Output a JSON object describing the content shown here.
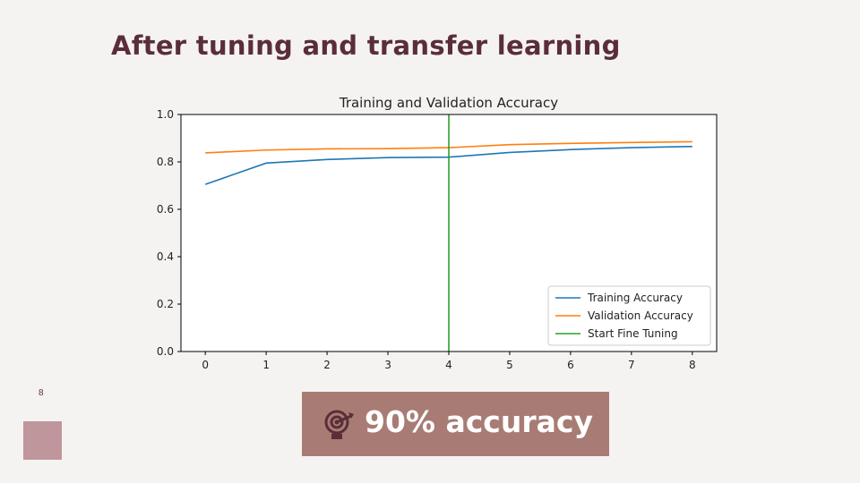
{
  "slide": {
    "title": "After tuning and transfer learning",
    "page_number": "8",
    "callout_text": "90% accuracy",
    "callout_icon": "target-icon",
    "colors": {
      "title": "#5a2e38",
      "callout_bg": "#a87c74",
      "deco_square": "#bf969c",
      "training": "#1f77b4",
      "validation": "#ff7f0e",
      "fine_tune": "#2ca02c"
    }
  },
  "chart_data": {
    "type": "line",
    "title": "Training and Validation Accuracy",
    "xlabel": "",
    "ylabel": "",
    "xlim": [
      -0.4,
      8.4
    ],
    "ylim": [
      0,
      1.0
    ],
    "xticks": [
      "0",
      "1",
      "2",
      "3",
      "4",
      "5",
      "6",
      "7",
      "8"
    ],
    "yticks": [
      "0.0",
      "0.2",
      "0.4",
      "0.6",
      "0.8",
      "1.0"
    ],
    "x": [
      0,
      1,
      2,
      3,
      4,
      5,
      6,
      7,
      8
    ],
    "series": [
      {
        "name": "Training Accuracy",
        "color": "#1f77b4",
        "values": [
          0.705,
          0.795,
          0.81,
          0.818,
          0.82,
          0.84,
          0.852,
          0.86,
          0.865
        ]
      },
      {
        "name": "Validation Accuracy",
        "color": "#ff7f0e",
        "values": [
          0.838,
          0.85,
          0.855,
          0.856,
          0.86,
          0.873,
          0.878,
          0.882,
          0.885
        ]
      }
    ],
    "vline": {
      "name": "Start Fine Tuning",
      "color": "#2ca02c",
      "x": 4
    },
    "legend": {
      "position": "lower-right",
      "entries": [
        "Training Accuracy",
        "Validation Accuracy",
        "Start Fine Tuning"
      ]
    },
    "grid": false
  }
}
